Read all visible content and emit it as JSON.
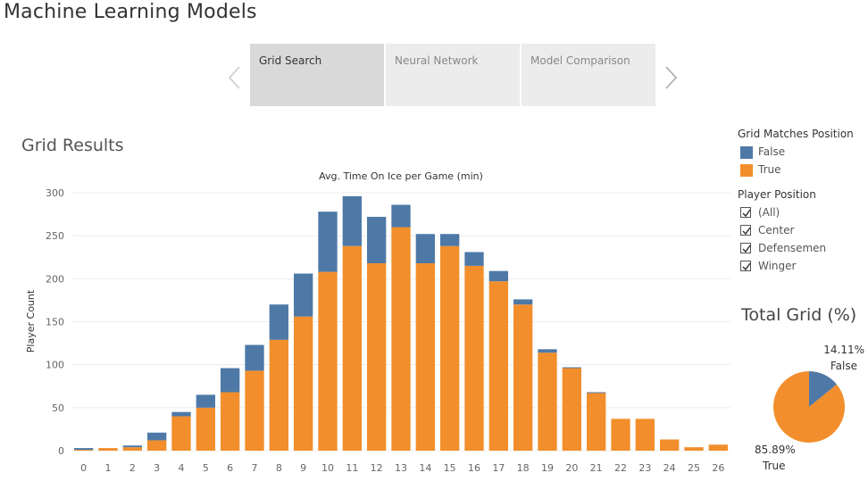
{
  "page": {
    "title": "Machine Learning Models"
  },
  "nav": {
    "prev_icon": "chevron-left-icon",
    "next_icon": "chevron-right-icon",
    "tabs": [
      {
        "label": "Grid Search",
        "active": true
      },
      {
        "label": "Neural Network",
        "active": false
      },
      {
        "label": "Model Comparison",
        "active": false
      }
    ]
  },
  "section": {
    "title": "Grid Results"
  },
  "legend": {
    "title": "Grid Matches Position",
    "items": [
      {
        "label": "False",
        "color": "#4e79a7"
      },
      {
        "label": "True",
        "color": "#f28e2b"
      }
    ]
  },
  "filter": {
    "title": "Player Position",
    "items": [
      {
        "label": "(All)",
        "checked": true
      },
      {
        "label": "Center",
        "checked": true
      },
      {
        "label": "Defensemen",
        "checked": true
      },
      {
        "label": "Winger",
        "checked": true
      }
    ]
  },
  "pie": {
    "title": "Total Grid (%)",
    "false_pct_label": "14.11%",
    "false_label": "False",
    "true_pct_label": "85.89%",
    "true_label": "True"
  },
  "chart_data": [
    {
      "type": "bar",
      "stacked": true,
      "title": "Avg. Time On Ice per Game (min)",
      "xlabel": "",
      "ylabel": "Player Count",
      "categories": [
        "0",
        "1",
        "2",
        "3",
        "4",
        "5",
        "6",
        "7",
        "8",
        "9",
        "10",
        "11",
        "12",
        "13",
        "14",
        "15",
        "16",
        "17",
        "18",
        "19",
        "20",
        "21",
        "22",
        "23",
        "24",
        "25",
        "26"
      ],
      "series": [
        {
          "name": "True",
          "color": "#f28e2b",
          "values": [
            1,
            3,
            4,
            12,
            40,
            50,
            68,
            93,
            129,
            156,
            208,
            238,
            218,
            260,
            218,
            238,
            215,
            197,
            170,
            114,
            96,
            67,
            37,
            37,
            13,
            4,
            7
          ]
        },
        {
          "name": "False",
          "color": "#4e79a7",
          "values": [
            2,
            0,
            2,
            9,
            5,
            15,
            28,
            30,
            41,
            50,
            70,
            58,
            54,
            26,
            34,
            14,
            16,
            12,
            6,
            4,
            1,
            1,
            0,
            0,
            0,
            0,
            0
          ]
        }
      ],
      "ylim": [
        0,
        310
      ],
      "yticks": [
        0,
        50,
        100,
        150,
        200,
        250,
        300
      ],
      "grid": true,
      "legend": "right"
    },
    {
      "type": "pie",
      "title": "Total Grid (%)",
      "categories": [
        "False",
        "True"
      ],
      "values": [
        14.11,
        85.89
      ],
      "colors": [
        "#4e79a7",
        "#f28e2b"
      ]
    }
  ]
}
